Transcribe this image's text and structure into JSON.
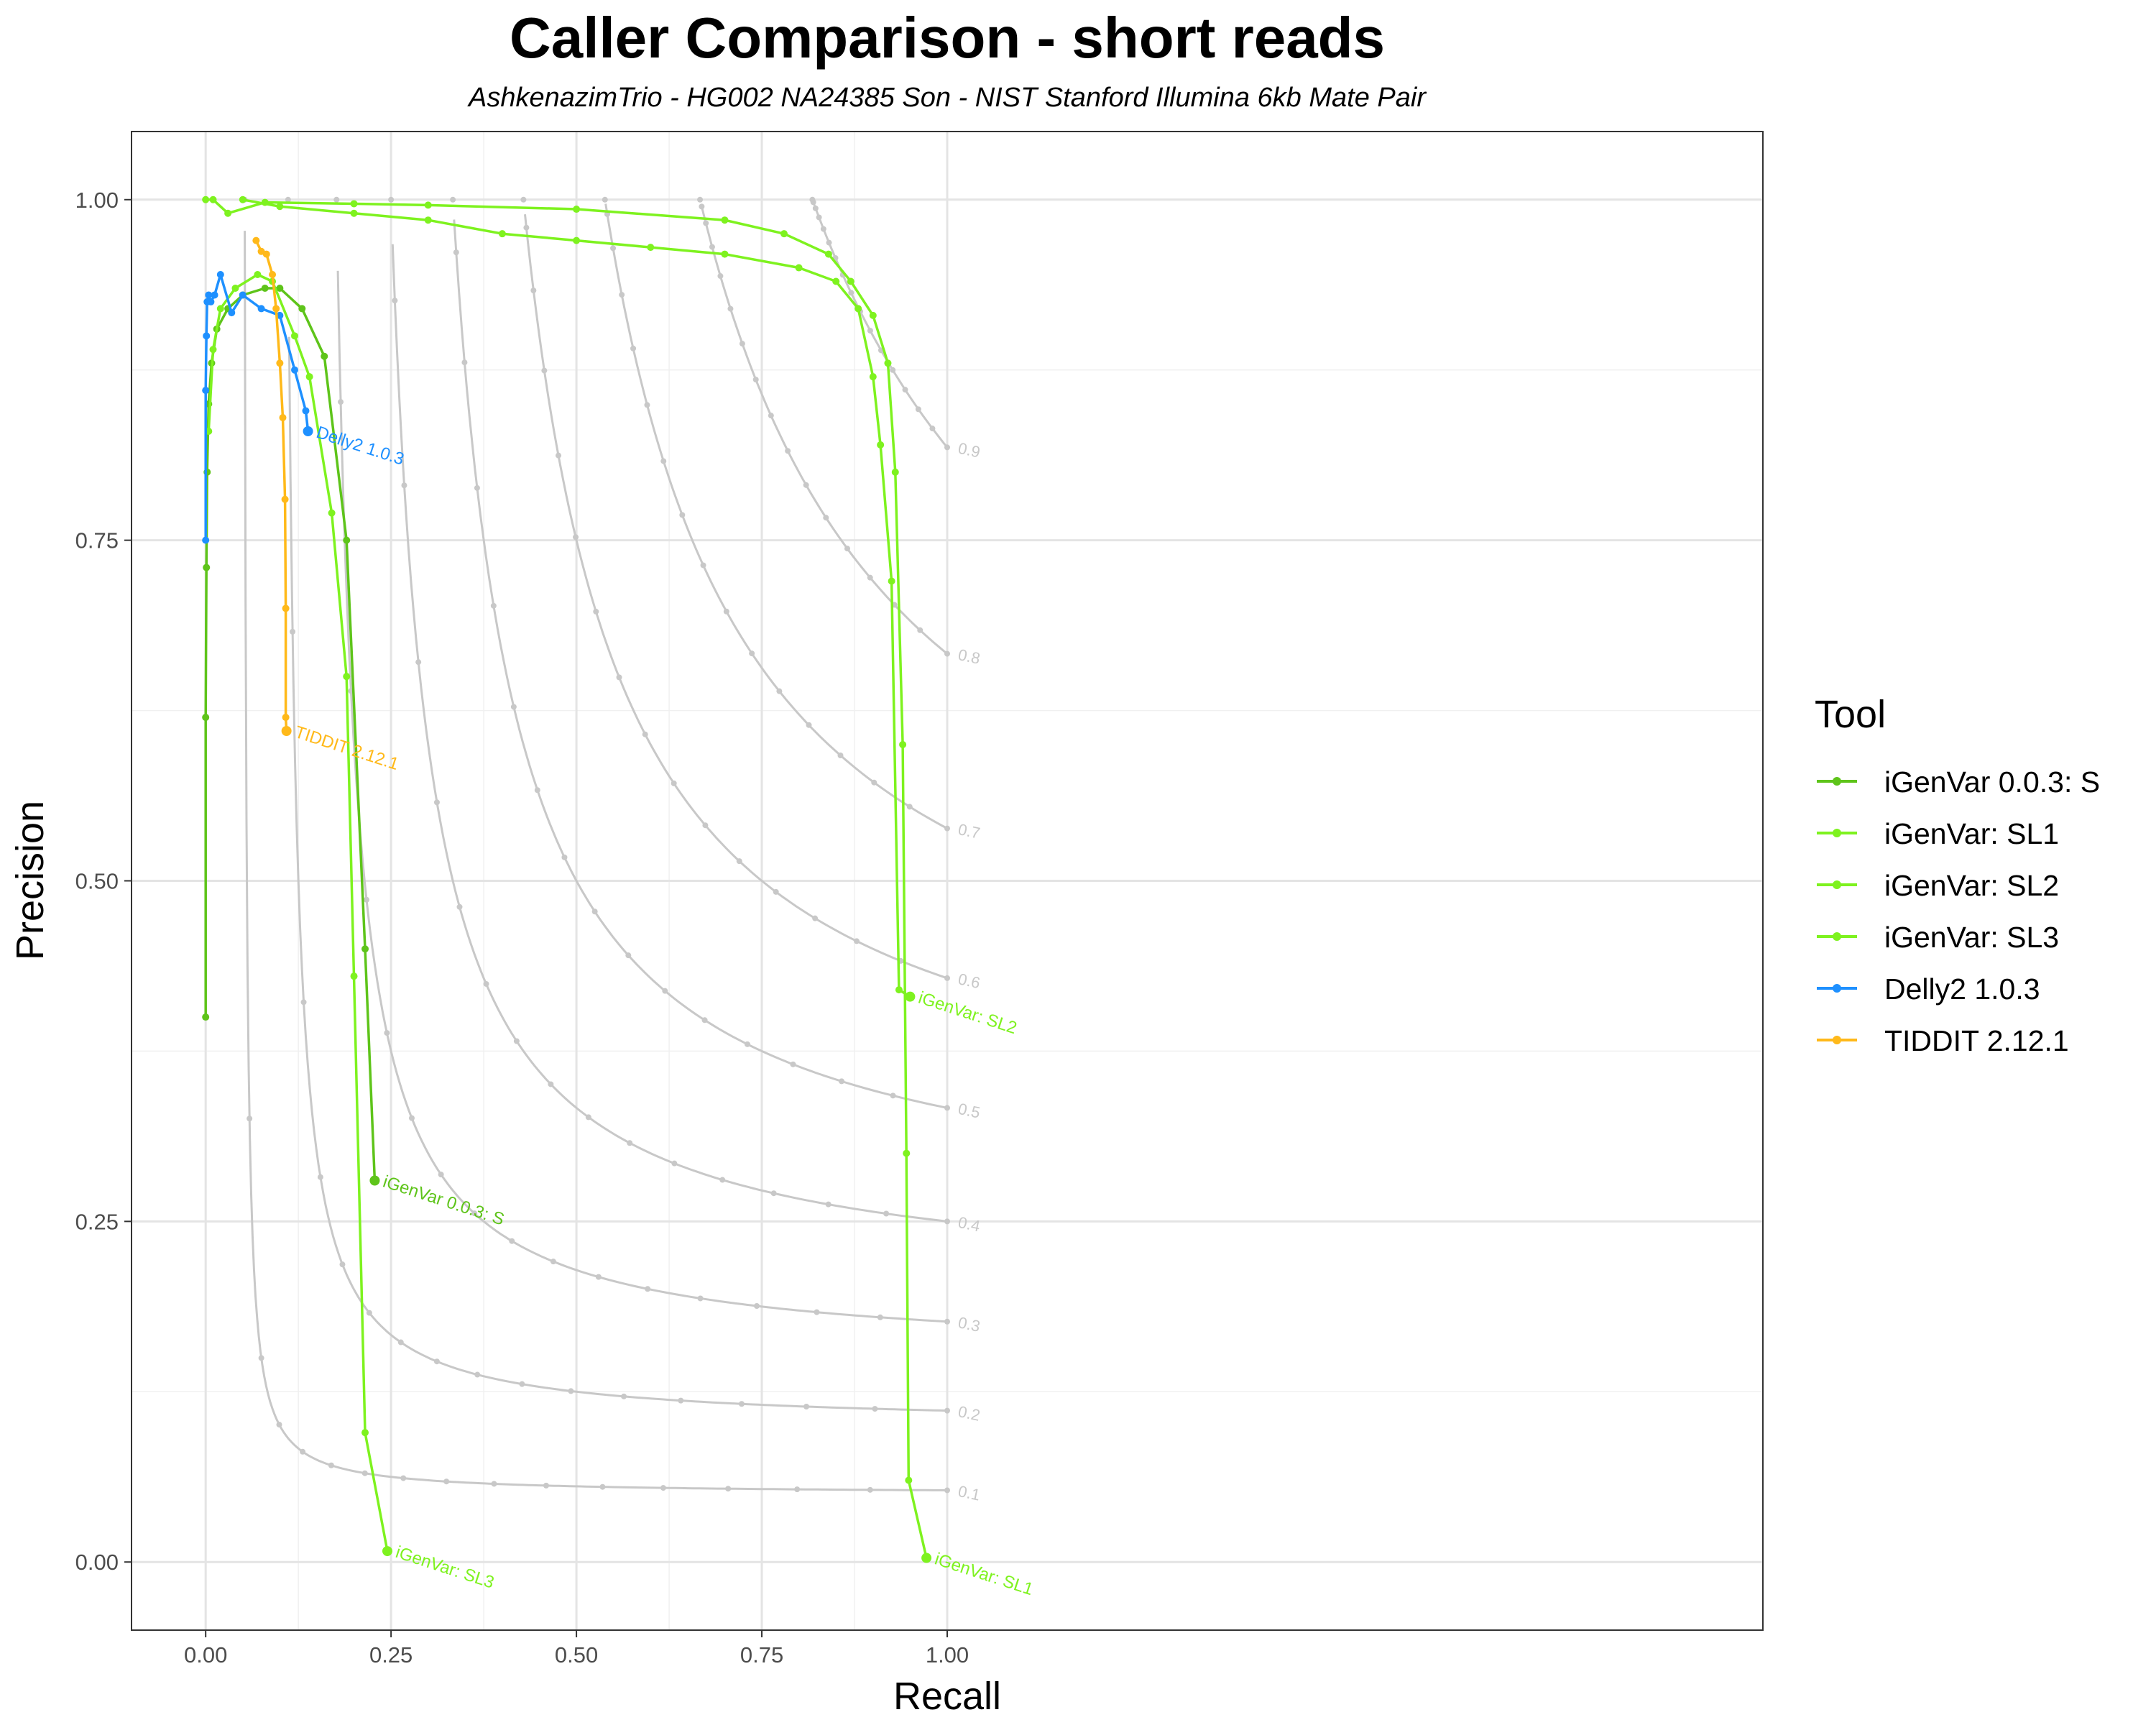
{
  "chart_data": {
    "type": "line",
    "title": "Caller Comparison - short reads",
    "subtitle": "AshkenazimTrio - HG002 NA24385 Son - NIST Stanford Illumina 6kb Mate Pair",
    "xlabel": "Recall",
    "ylabel": "Precision",
    "xlim": [
      -0.1,
      2.1
    ],
    "ylim": [
      -0.05,
      1.05
    ],
    "x_ticks": [
      0,
      0.25,
      0.5,
      0.75,
      1.0
    ],
    "x_tick_labels": [
      "0.00",
      "0.25",
      "0.50",
      "0.75",
      "1.00"
    ],
    "y_ticks": [
      0,
      0.25,
      0.5,
      0.75,
      1.0
    ],
    "y_tick_labels": [
      "0.00",
      "0.25",
      "0.50",
      "0.75",
      "1.00"
    ],
    "grid": true,
    "legend": {
      "title": "Tool",
      "position": "right"
    },
    "f_score_isolines": {
      "color": "#c8c8c8",
      "levels": [
        0.1,
        0.2,
        0.3,
        0.4,
        0.5,
        0.6,
        0.7,
        0.8,
        0.9
      ],
      "labels": [
        "0.1",
        "0.2",
        "0.3",
        "0.4",
        "0.5",
        "0.6",
        "0.7",
        "0.8",
        "0.9"
      ]
    },
    "series": [
      {
        "name": "iGenVar 0.0.3: S",
        "end_label": "iGenVar 0.0.3: S",
        "color": "#5ec41a",
        "points": [
          [
            0.0,
            0.4
          ],
          [
            0.0,
            0.62
          ],
          [
            0.001,
            0.73
          ],
          [
            0.002,
            0.8
          ],
          [
            0.004,
            0.85
          ],
          [
            0.008,
            0.88
          ],
          [
            0.015,
            0.905
          ],
          [
            0.03,
            0.92
          ],
          [
            0.05,
            0.93
          ],
          [
            0.08,
            0.935
          ],
          [
            0.1,
            0.935
          ],
          [
            0.13,
            0.92
          ],
          [
            0.16,
            0.885
          ],
          [
            0.19,
            0.75
          ],
          [
            0.215,
            0.45
          ],
          [
            0.228,
            0.28
          ]
        ]
      },
      {
        "name": "iGenVar: SL1",
        "end_label": "iGenVar: SL1",
        "color": "#7ef21f",
        "points": [
          [
            0.0,
            1.0
          ],
          [
            0.01,
            1.0
          ],
          [
            0.03,
            0.99
          ],
          [
            0.08,
            0.998
          ],
          [
            0.2,
            0.997
          ],
          [
            0.3,
            0.996
          ],
          [
            0.5,
            0.993
          ],
          [
            0.7,
            0.985
          ],
          [
            0.78,
            0.975
          ],
          [
            0.84,
            0.96
          ],
          [
            0.87,
            0.94
          ],
          [
            0.9,
            0.915
          ],
          [
            0.92,
            0.88
          ],
          [
            0.93,
            0.8
          ],
          [
            0.94,
            0.6
          ],
          [
            0.945,
            0.3
          ],
          [
            0.948,
            0.06
          ],
          [
            0.972,
            0.003
          ]
        ]
      },
      {
        "name": "iGenVar: SL2",
        "end_label": "iGenVar: SL2",
        "color": "#7ef21f",
        "points": [
          [
            0.05,
            1.0
          ],
          [
            0.1,
            0.995
          ],
          [
            0.2,
            0.99
          ],
          [
            0.3,
            0.985
          ],
          [
            0.4,
            0.975
          ],
          [
            0.5,
            0.97
          ],
          [
            0.6,
            0.965
          ],
          [
            0.7,
            0.96
          ],
          [
            0.8,
            0.95
          ],
          [
            0.85,
            0.94
          ],
          [
            0.88,
            0.92
          ],
          [
            0.9,
            0.87
          ],
          [
            0.91,
            0.82
          ],
          [
            0.925,
            0.72
          ],
          [
            0.935,
            0.42
          ],
          [
            0.95,
            0.415
          ]
        ]
      },
      {
        "name": "iGenVar: SL3",
        "end_label": "iGenVar: SL3",
        "color": "#7ef21f",
        "points": [
          [
            0.004,
            0.83
          ],
          [
            0.01,
            0.89
          ],
          [
            0.02,
            0.92
          ],
          [
            0.04,
            0.935
          ],
          [
            0.07,
            0.945
          ],
          [
            0.09,
            0.94
          ],
          [
            0.12,
            0.9
          ],
          [
            0.14,
            0.87
          ],
          [
            0.17,
            0.77
          ],
          [
            0.19,
            0.65
          ],
          [
            0.2,
            0.43
          ],
          [
            0.215,
            0.095
          ],
          [
            0.245,
            0.008
          ]
        ]
      },
      {
        "name": "Delly2 1.0.3",
        "end_label": "Delly2 1.0.3",
        "color": "#1e90ff",
        "points": [
          [
            0.0,
            0.75
          ],
          [
            0.0,
            0.86
          ],
          [
            0.001,
            0.9
          ],
          [
            0.002,
            0.925
          ],
          [
            0.004,
            0.93
          ],
          [
            0.007,
            0.925
          ],
          [
            0.012,
            0.93
          ],
          [
            0.02,
            0.945
          ],
          [
            0.035,
            0.917
          ],
          [
            0.05,
            0.93
          ],
          [
            0.075,
            0.92
          ],
          [
            0.1,
            0.915
          ],
          [
            0.12,
            0.875
          ],
          [
            0.135,
            0.845
          ],
          [
            0.138,
            0.83
          ]
        ]
      },
      {
        "name": "TIDDIT 2.12.1",
        "end_label": "TIDDIT 2.12.1",
        "color": "#ffb91a",
        "points": [
          [
            0.068,
            0.97
          ],
          [
            0.075,
            0.962
          ],
          [
            0.082,
            0.96
          ],
          [
            0.09,
            0.945
          ],
          [
            0.095,
            0.92
          ],
          [
            0.1,
            0.88
          ],
          [
            0.104,
            0.84
          ],
          [
            0.107,
            0.78
          ],
          [
            0.108,
            0.7
          ],
          [
            0.108,
            0.62
          ],
          [
            0.109,
            0.61
          ]
        ]
      }
    ]
  }
}
